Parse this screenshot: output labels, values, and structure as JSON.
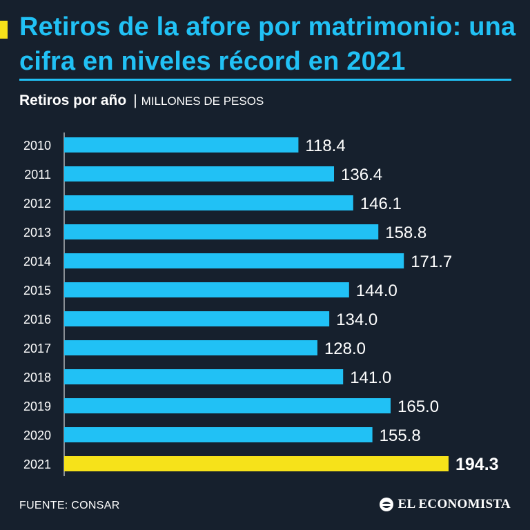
{
  "headline": "Retiros de la afore por matrimonio: una cifra en niveles récord en 2021",
  "subtitle": {
    "strong": "Retiros por año",
    "separator": "|",
    "unit": "MILLONES DE PESOS"
  },
  "chart_data": {
    "type": "bar",
    "orientation": "horizontal",
    "categories": [
      "2010",
      "2011",
      "2012",
      "2013",
      "2014",
      "2015",
      "2016",
      "2017",
      "2018",
      "2019",
      "2020",
      "2021"
    ],
    "values": [
      118.4,
      136.4,
      146.1,
      158.8,
      171.7,
      144.0,
      134.0,
      128.0,
      141.0,
      165.0,
      155.8,
      194.3
    ],
    "value_labels": [
      "118.4",
      "136.4",
      "146.1",
      "158.8",
      "171.7",
      "144.0",
      "134.0",
      "128.0",
      "141.0",
      "165.0",
      "155.8",
      "194.3"
    ],
    "title": "Retiros por año",
    "unit": "MILLONES DE PESOS",
    "highlight_category": "2021",
    "colors": {
      "bar": "#21c1f5",
      "highlight": "#f6e21a",
      "background": "#16202d",
      "axis": "#ffffff"
    },
    "grid": false,
    "legend": "none"
  },
  "footer": {
    "source": "FUENTE: CONSAR",
    "brand": "EL ECONOMISTA",
    "brand_icon": "el-economista-logo-icon"
  }
}
